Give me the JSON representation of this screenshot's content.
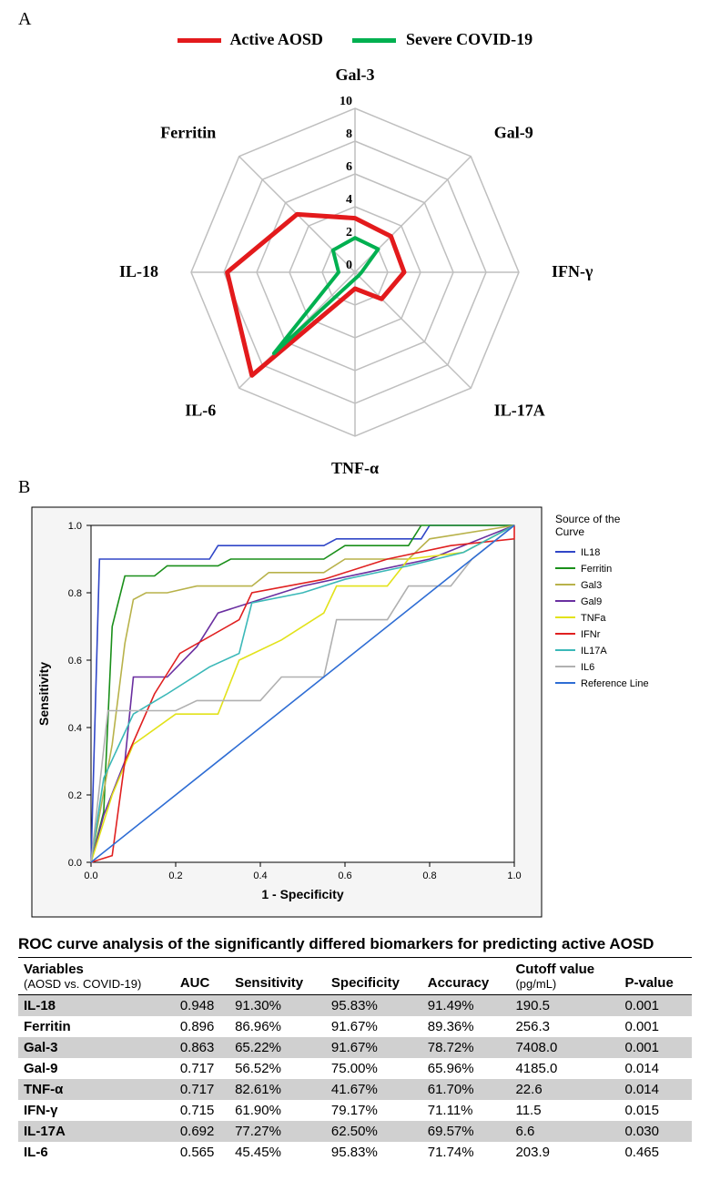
{
  "panelA": {
    "label": "A",
    "legend": [
      {
        "label": "Active AOSD",
        "color": "#e31a1c"
      },
      {
        "label": "Severe COVID-19",
        "color": "#00b050"
      }
    ],
    "radar": {
      "axes": [
        "Gal-3",
        "Gal-9",
        "IFN-γ",
        "IL-17A",
        "TNF-α",
        "IL-6",
        "IL-18",
        "Ferritin"
      ],
      "max": 10,
      "ticks": [
        0,
        2,
        4,
        6,
        8,
        10
      ],
      "grid_color": "#bfbfbf",
      "axis_color": "#bfbfbf",
      "series": [
        {
          "name": "Active AOSD",
          "color": "#e31a1c",
          "lw": 5,
          "values": [
            3.3,
            3.1,
            3.0,
            2.3,
            1.0,
            8.9,
            7.8,
            5.0
          ]
        },
        {
          "name": "Severe COVID-19",
          "color": "#00b050",
          "lw": 4,
          "values": [
            2.1,
            2.0,
            0.4,
            0.3,
            0.4,
            7.0,
            1.0,
            1.9
          ]
        }
      ]
    }
  },
  "panelB": {
    "label": "B",
    "roc": {
      "xlabel": "1 - Specificity",
      "ylabel": "Sensitivity",
      "legend_title": "Source of the Curve",
      "xlim": [
        0,
        1
      ],
      "ylim": [
        0,
        1
      ],
      "ticks": [
        0.0,
        0.2,
        0.4,
        0.6,
        0.8,
        1.0
      ],
      "grid_color": "#e6e6e6",
      "bg": "#f5f5f5",
      "frame_bg": "#ffffff",
      "ref_color": "#2e6dd4",
      "series": [
        {
          "name": "IL18",
          "color": "#3046c7",
          "pts": [
            [
              0,
              0
            ],
            [
              0.02,
              0.9
            ],
            [
              0.28,
              0.9
            ],
            [
              0.3,
              0.94
            ],
            [
              0.55,
              0.94
            ],
            [
              0.58,
              0.96
            ],
            [
              0.78,
              0.96
            ],
            [
              0.8,
              1.0
            ],
            [
              1,
              1
            ]
          ]
        },
        {
          "name": "Ferritin",
          "color": "#1a8f1a",
          "pts": [
            [
              0,
              0
            ],
            [
              0.03,
              0.15
            ],
            [
              0.05,
              0.7
            ],
            [
              0.08,
              0.85
            ],
            [
              0.15,
              0.85
            ],
            [
              0.18,
              0.88
            ],
            [
              0.3,
              0.88
            ],
            [
              0.33,
              0.9
            ],
            [
              0.55,
              0.9
            ],
            [
              0.6,
              0.94
            ],
            [
              0.75,
              0.94
            ],
            [
              0.78,
              1.0
            ],
            [
              1,
              1
            ]
          ]
        },
        {
          "name": "Gal3",
          "color": "#b8b24a",
          "pts": [
            [
              0,
              0
            ],
            [
              0.05,
              0.35
            ],
            [
              0.08,
              0.65
            ],
            [
              0.1,
              0.78
            ],
            [
              0.13,
              0.8
            ],
            [
              0.18,
              0.8
            ],
            [
              0.25,
              0.82
            ],
            [
              0.38,
              0.82
            ],
            [
              0.42,
              0.86
            ],
            [
              0.55,
              0.86
            ],
            [
              0.6,
              0.9
            ],
            [
              0.75,
              0.9
            ],
            [
              0.8,
              0.96
            ],
            [
              1,
              1
            ]
          ]
        },
        {
          "name": "Gal9",
          "color": "#6a2fa0",
          "pts": [
            [
              0,
              0
            ],
            [
              0.03,
              0.14
            ],
            [
              0.08,
              0.3
            ],
            [
              0.1,
              0.55
            ],
            [
              0.18,
              0.55
            ],
            [
              0.25,
              0.64
            ],
            [
              0.3,
              0.74
            ],
            [
              0.4,
              0.78
            ],
            [
              0.5,
              0.82
            ],
            [
              0.65,
              0.86
            ],
            [
              0.8,
              0.9
            ],
            [
              1,
              1
            ]
          ]
        },
        {
          "name": "TNFa",
          "color": "#e2e21a",
          "pts": [
            [
              0,
              0
            ],
            [
              0.05,
              0.2
            ],
            [
              0.1,
              0.35
            ],
            [
              0.2,
              0.44
            ],
            [
              0.3,
              0.44
            ],
            [
              0.35,
              0.6
            ],
            [
              0.45,
              0.66
            ],
            [
              0.55,
              0.74
            ],
            [
              0.58,
              0.82
            ],
            [
              0.7,
              0.82
            ],
            [
              0.75,
              0.9
            ],
            [
              0.88,
              0.92
            ],
            [
              1,
              1
            ]
          ]
        },
        {
          "name": "IFNr",
          "color": "#e02020",
          "pts": [
            [
              0,
              0
            ],
            [
              0.05,
              0.02
            ],
            [
              0.08,
              0.3
            ],
            [
              0.15,
              0.5
            ],
            [
              0.2,
              0.6
            ],
            [
              0.21,
              0.62
            ],
            [
              0.35,
              0.72
            ],
            [
              0.38,
              0.8
            ],
            [
              0.55,
              0.84
            ],
            [
              0.7,
              0.9
            ],
            [
              0.85,
              0.94
            ],
            [
              1,
              0.96
            ],
            [
              1,
              1
            ]
          ]
        },
        {
          "name": "IL17A",
          "color": "#3bb8b8",
          "pts": [
            [
              0,
              0
            ],
            [
              0.03,
              0.25
            ],
            [
              0.1,
              0.44
            ],
            [
              0.18,
              0.5
            ],
            [
              0.28,
              0.58
            ],
            [
              0.35,
              0.62
            ],
            [
              0.38,
              0.77
            ],
            [
              0.5,
              0.8
            ],
            [
              0.6,
              0.84
            ],
            [
              0.75,
              0.88
            ],
            [
              0.88,
              0.92
            ],
            [
              1,
              1
            ]
          ]
        },
        {
          "name": "IL6",
          "color": "#b0b0b0",
          "pts": [
            [
              0,
              0
            ],
            [
              0.04,
              0.45
            ],
            [
              0.2,
              0.45
            ],
            [
              0.25,
              0.48
            ],
            [
              0.4,
              0.48
            ],
            [
              0.45,
              0.55
            ],
            [
              0.55,
              0.55
            ],
            [
              0.58,
              0.72
            ],
            [
              0.7,
              0.72
            ],
            [
              0.75,
              0.82
            ],
            [
              0.85,
              0.82
            ],
            [
              0.9,
              0.9
            ],
            [
              1,
              1
            ]
          ]
        },
        {
          "name": "Reference Line",
          "color": "#2e6dd4",
          "ref": true,
          "pts": [
            [
              0,
              0
            ],
            [
              1,
              1
            ]
          ]
        }
      ]
    }
  },
  "table": {
    "caption": "ROC curve analysis of the significantly differed biomarkers for predicting active AOSD",
    "columns": [
      "Variables\n(AOSD vs. COVID-19)",
      "AUC",
      "Sensitivity",
      "Specificity",
      "Accuracy",
      "Cutoff value\n(pg/mL)",
      "P-value"
    ],
    "rows": [
      [
        "IL-18",
        "0.948",
        "91.30%",
        "95.83%",
        "91.49%",
        "190.5",
        "0.001"
      ],
      [
        "Ferritin",
        "0.896",
        "86.96%",
        "91.67%",
        "89.36%",
        "256.3",
        "0.001"
      ],
      [
        "Gal-3",
        "0.863",
        "65.22%",
        "91.67%",
        "78.72%",
        "7408.0",
        "0.001"
      ],
      [
        "Gal-9",
        "0.717",
        "56.52%",
        "75.00%",
        "65.96%",
        "4185.0",
        "0.014"
      ],
      [
        "TNF-α",
        "0.717",
        "82.61%",
        "41.67%",
        "61.70%",
        "22.6",
        "0.014"
      ],
      [
        "IFN-γ",
        "0.715",
        "61.90%",
        "79.17%",
        "71.11%",
        "11.5",
        "0.015"
      ],
      [
        "IL-17A",
        "0.692",
        "77.27%",
        "62.50%",
        "69.57%",
        "6.6",
        "0.030"
      ],
      [
        "IL-6",
        "0.565",
        "45.45%",
        "95.83%",
        "71.74%",
        "203.9",
        "0.465"
      ]
    ],
    "row_shade_odd": "#d0d0d0",
    "row_shade_even": "#ffffff"
  }
}
